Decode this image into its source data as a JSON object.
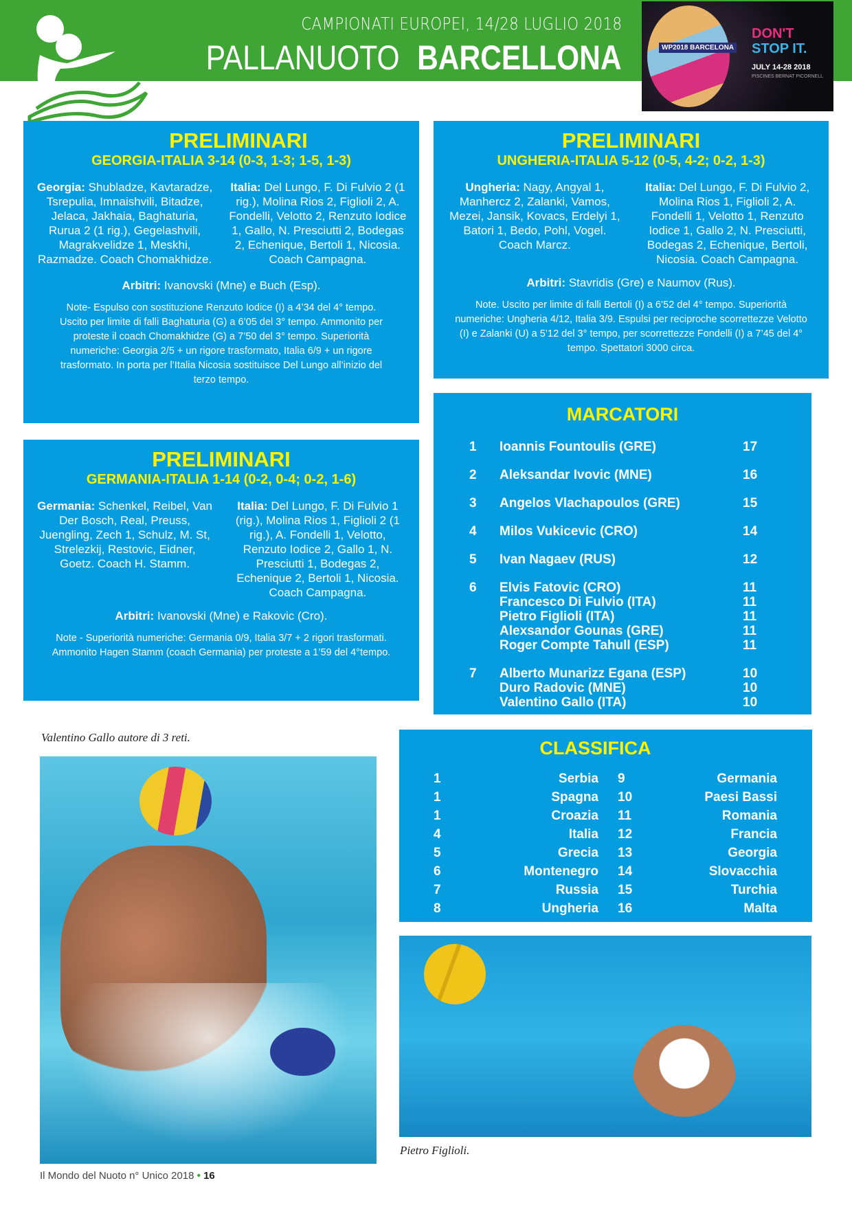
{
  "header": {
    "kicker": "CAMPIONATI EUROPEI, 14/28 LUGLIO  2018",
    "title_left": "PALLANUOTO",
    "title_right": "BARCELLONA",
    "poster": {
      "badge": "WP2018 BARCELONA",
      "slogan1": "DON'T",
      "slogan2": "STOP IT.",
      "dates": "JULY 14-28 2018",
      "venue": "PISCINES BERNAT PICORNELL"
    }
  },
  "colors": {
    "green": "#3fa535",
    "blue": "#069de0",
    "yellow": "#fff200"
  },
  "matches": [
    {
      "heading": "PRELIMINARI",
      "result": "GEORGIA-ITALIA 3-14 (0-3, 1-3; 1-5, 1-3)",
      "team1_label": "Georgia:",
      "team1": "Shubladze, Kavtaradze, Tsrepulia, Imnaishvili, Bitadze, Jelaca, Jakhaia, Baghaturia, Rurua 2 (1 rig.), Gegelashvili, Magrakvelidze 1, Meskhi, Razmadze. Coach Chomakhidze.",
      "team2_label": "Italia:",
      "team2": "Del Lungo, F. Di Fulvio 2 (1 rig.), Molina Rios 2, Figlioli 2, A. Fondelli, Velotto 2, Renzuto Iodice 1, Gallo, N. Presciutti 2, Bodegas 2, Echenique, Bertoli 1, Nicosia. Coach Campagna.",
      "referees_label": "Arbitri:",
      "referees": "Ivanovski (Mne) e Buch (Esp).",
      "note": "Note- Espulso con sostituzione Renzuto Iodice (I) a 4’34 del 4° tempo. Uscito per limite di falli Baghaturia (G) a 6’05 del 3° tempo. Ammonito per proteste il coach Chomakhidze (G) a 7’50 del 3° tempo. Superiorità numeriche: Georgia 2/5 + un rigore trasformato, Italia 6/9 + un rigore trasformato. In porta per l’Italia Nicosia sostituisce Del Lungo all’inizio del terzo tempo."
    },
    {
      "heading": "PRELIMINARI",
      "result": "UNGHERIA-ITALIA 5-12 (0-5, 4-2; 0-2, 1-3)",
      "team1_label": "Ungheria:",
      "team1": "Nagy, Angyal 1, Manhercz 2, Zalanki, Vamos, Mezei, Jansik, Kovacs, Erdelyi 1, Batori 1, Bedo, Pohl, Vogel. Coach Marcz.",
      "team2_label": "Italia:",
      "team2": "Del Lungo, F. Di Fulvio 2, Molina Rios 1, Figlioli 2, A. Fondelli 1, Velotto 1, Renzuto Iodice 1, Gallo 2, N. Presciutti, Bodegas 2, Echenique, Bertoli, Nicosia. Coach Campagna.",
      "referees_label": "Arbitri:",
      "referees": "Stavridis (Gre) e Naumov (Rus).",
      "note": "Note. Uscito per limite di falli Bertoli (I) a 6’52 del 4° tempo. Superiorità numeriche: Ungheria 4/12, Italia 3/9. Espulsi per reciproche scorrettezze Velotto (I) e Zalanki (U) a 5’12 del 3° tempo, per scorrettezze Fondelli (I) a 7’45 del 4° tempo. Spettatori 3000 circa."
    },
    {
      "heading": "PRELIMINARI",
      "result": "GERMANIA-ITALIA 1-14 (0-2, 0-4; 0-2, 1-6)",
      "team1_label": "Germania:",
      "team1": "Schenkel, Reibel, Van Der Bosch, Real, Preuss, Juengling, Zech 1, Schulz, M. St, Strelezkij, Restovic, Eidner, Goetz. Coach H. Stamm.",
      "team2_label": "Italia:",
      "team2": "Del Lungo, F. Di Fulvio 1 (rig.), Molina Rios 1, Figlioli 2 (1 rig.), A. Fondelli 1, Velotto, Renzuto Iodice 2, Gallo 1, N. Presciutti 1, Bodegas 2, Echenique 2, Bertoli 1, Nicosia. Coach Campagna.",
      "referees_label": "Arbitri:",
      "referees": "Ivanovski (Mne) e Rakovic (Cro).",
      "note": "Note - Superiorità numeriche: Germania 0/9, Italia 3/7 + 2 rigori trasformati. Ammonito Hagen Stamm (coach Germania) per proteste a 1’59 del 4°tempo."
    }
  ],
  "scorers": {
    "heading": "MARCATORI",
    "groups": [
      {
        "pos": "1",
        "players": [
          {
            "name": "Ioannis Fountoulis (GRE)",
            "goals": "17"
          }
        ]
      },
      {
        "pos": "2",
        "players": [
          {
            "name": "Aleksandar Ivovic (MNE)",
            "goals": "16"
          }
        ]
      },
      {
        "pos": "3",
        "players": [
          {
            "name": "Angelos Vlachapoulos (GRE)",
            "goals": "15"
          }
        ]
      },
      {
        "pos": "4",
        "players": [
          {
            "name": "Milos Vukicevic (CRO)",
            "goals": "14"
          }
        ]
      },
      {
        "pos": "5",
        "players": [
          {
            "name": "Ivan Nagaev (RUS)",
            "goals": "12"
          }
        ]
      },
      {
        "pos": "6",
        "players": [
          {
            "name": "Elvis Fatovic (CRO)",
            "goals": "11"
          },
          {
            "name": "Francesco Di Fulvio (ITA)",
            "goals": "11"
          },
          {
            "name": "Pietro Figlioli (ITA)",
            "goals": "11"
          },
          {
            "name": "Alexsandor Gounas (GRE)",
            "goals": "11"
          },
          {
            "name": "Roger Compte Tahull (ESP)",
            "goals": "11"
          }
        ]
      },
      {
        "pos": "7",
        "players": [
          {
            "name": "Alberto Munarizz Egana (ESP)",
            "goals": "10"
          },
          {
            "name": "Duro Radovic (MNE)",
            "goals": "10"
          },
          {
            "name": "Valentino Gallo (ITA)",
            "goals": "10"
          }
        ]
      }
    ]
  },
  "standings": {
    "heading": "CLASSIFICA",
    "rows": [
      {
        "p1": "1",
        "t1": "Serbia",
        "p2": "9",
        "t2": "Germania"
      },
      {
        "p1": "1",
        "t1": "Spagna",
        "p2": "10",
        "t2": "Paesi Bassi"
      },
      {
        "p1": "1",
        "t1": "Croazia",
        "p2": "11",
        "t2": "Romania"
      },
      {
        "p1": "4",
        "t1": "Italia",
        "p2": "12",
        "t2": "Francia"
      },
      {
        "p1": "5",
        "t1": "Grecia",
        "p2": "13",
        "t2": "Georgia"
      },
      {
        "p1": "6",
        "t1": "Montenegro",
        "p2": "14",
        "t2": "Slovacchia"
      },
      {
        "p1": "7",
        "t1": "Russia",
        "p2": "15",
        "t2": "Turchia"
      },
      {
        "p1": "8",
        "t1": "Ungheria",
        "p2": "16",
        "t2": "Malta"
      }
    ]
  },
  "captions": {
    "photo1": "Valentino Gallo autore di 3 reti.",
    "photo2": "Pietro Figlioli."
  },
  "footer": {
    "publication": "Il Mondo del Nuoto n° Unico 2018",
    "separator": "•",
    "page": "16"
  }
}
